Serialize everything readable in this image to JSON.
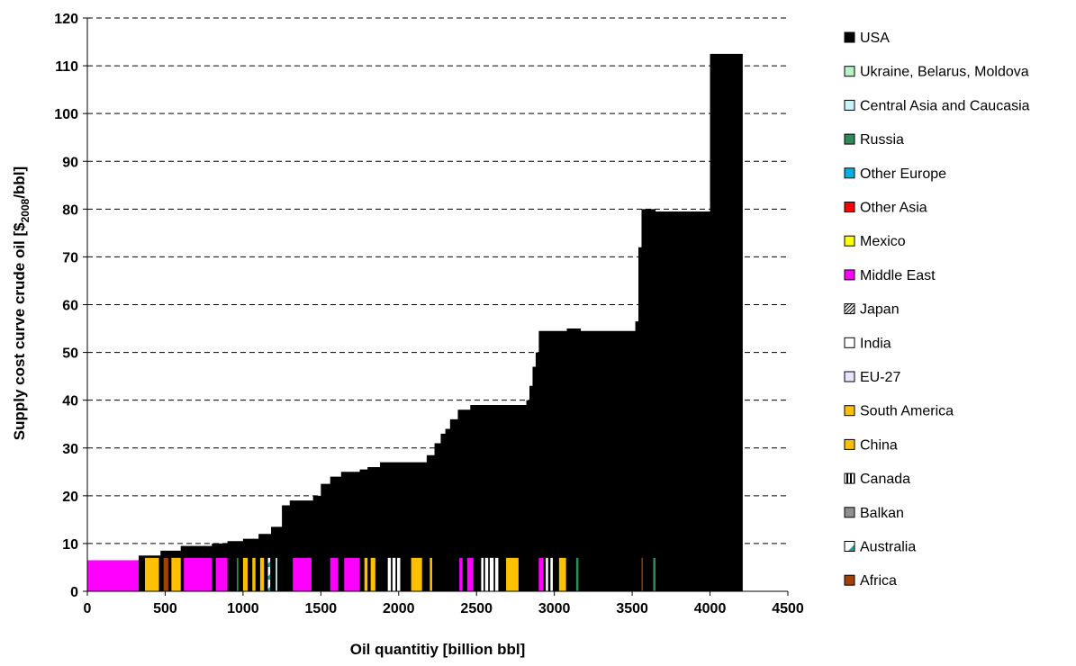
{
  "chart_data": {
    "type": "area",
    "xlabel": "Oil quantitiy [billion bbl]",
    "ylabel_parts": [
      "Supply cost curve crude oil [$",
      "2008",
      "/bbl]"
    ],
    "xlim": [
      0,
      4500
    ],
    "ylim": [
      0,
      120
    ],
    "x_ticks": [
      0,
      500,
      1000,
      1500,
      2000,
      2500,
      3000,
      3500,
      4000,
      4500
    ],
    "y_ticks": [
      0,
      10,
      20,
      30,
      40,
      50,
      60,
      70,
      80,
      90,
      100,
      110,
      120
    ],
    "y_gridlines": true,
    "legend_position": "right",
    "legend": [
      {
        "name": "USA",
        "color": "#000000",
        "pattern": "solid"
      },
      {
        "name": "Ukraine, Belarus, Moldova",
        "color": "#b8f0c8",
        "pattern": "solid"
      },
      {
        "name": "Central Asia and Caucasia",
        "color": "#c8f4f8",
        "pattern": "solid"
      },
      {
        "name": "Russia",
        "color": "#2e8b57",
        "pattern": "solid"
      },
      {
        "name": "Other Europe",
        "color": "#00b0e0",
        "pattern": "solid"
      },
      {
        "name": "Other Asia",
        "color": "#ff0000",
        "pattern": "solid"
      },
      {
        "name": "Mexico",
        "color": "#ffff00",
        "pattern": "solid"
      },
      {
        "name": "Middle East",
        "color": "#ff00ff",
        "pattern": "solid"
      },
      {
        "name": "Japan",
        "color": "#ffffff",
        "pattern": "hatch"
      },
      {
        "name": "India",
        "color": "#ffffff",
        "pattern": "solid"
      },
      {
        "name": "EU-27",
        "color": "#e8e4ff",
        "pattern": "solid"
      },
      {
        "name": "South America",
        "color": "#ffc000",
        "pattern": "solid"
      },
      {
        "name": "China",
        "color": "#ffc000",
        "pattern": "solid"
      },
      {
        "name": "Canada",
        "color": "#ffffff",
        "pattern": "vstripe"
      },
      {
        "name": "Balkan",
        "color": "#909090",
        "pattern": "solid"
      },
      {
        "name": "Australia",
        "color": "#20a0a0",
        "pattern": "diag"
      },
      {
        "name": "Africa",
        "color": "#a0400a",
        "pattern": "solid"
      }
    ],
    "supply_curve": [
      [
        0,
        6.5
      ],
      [
        330,
        7.5
      ],
      [
        470,
        8.5
      ],
      [
        600,
        9.5
      ],
      [
        800,
        10
      ],
      [
        900,
        10.5
      ],
      [
        1000,
        11
      ],
      [
        1100,
        12
      ],
      [
        1180,
        13.5
      ],
      [
        1250,
        18
      ],
      [
        1300,
        19
      ],
      [
        1450,
        20
      ],
      [
        1500,
        22.5
      ],
      [
        1560,
        24
      ],
      [
        1630,
        25
      ],
      [
        1750,
        25.5
      ],
      [
        1800,
        26
      ],
      [
        1880,
        27
      ],
      [
        2180,
        28.5
      ],
      [
        2230,
        31
      ],
      [
        2270,
        33
      ],
      [
        2300,
        34
      ],
      [
        2330,
        36
      ],
      [
        2380,
        38
      ],
      [
        2460,
        39
      ],
      [
        2820,
        40
      ],
      [
        2840,
        43
      ],
      [
        2860,
        47
      ],
      [
        2880,
        50
      ],
      [
        2900,
        54.5
      ],
      [
        3080,
        55
      ],
      [
        3170,
        54.5
      ],
      [
        3520,
        56.5
      ],
      [
        3540,
        72
      ],
      [
        3560,
        80
      ],
      [
        3650,
        79.5
      ],
      [
        4000,
        112.5
      ],
      [
        4060,
        112.5
      ],
      [
        4210,
        0
      ]
    ],
    "region_segments": [
      {
        "region": "Middle East",
        "x0": 0,
        "x1": 330
      },
      {
        "region": "South America",
        "x0": 370,
        "x1": 460
      },
      {
        "region": "Africa",
        "x0": 490,
        "x1": 520
      },
      {
        "region": "China",
        "x0": 540,
        "x1": 600
      },
      {
        "region": "Middle East",
        "x0": 620,
        "x1": 800
      },
      {
        "region": "Middle East",
        "x0": 825,
        "x1": 900
      },
      {
        "region": "Russia",
        "x0": 960,
        "x1": 970
      },
      {
        "region": "China",
        "x0": 1000,
        "x1": 1030
      },
      {
        "region": "South America",
        "x0": 1060,
        "x1": 1080
      },
      {
        "region": "China",
        "x0": 1110,
        "x1": 1135
      },
      {
        "region": "Australia",
        "x0": 1160,
        "x1": 1175
      },
      {
        "region": "Central Asia and Caucasia",
        "x0": 1210,
        "x1": 1220
      },
      {
        "region": "Middle East",
        "x0": 1320,
        "x1": 1440
      },
      {
        "region": "Middle East",
        "x0": 1560,
        "x1": 1610
      },
      {
        "region": "Middle East",
        "x0": 1650,
        "x1": 1750
      },
      {
        "region": "China",
        "x0": 1780,
        "x1": 1800
      },
      {
        "region": "South America",
        "x0": 1820,
        "x1": 1850
      },
      {
        "region": "India",
        "x0": 1930,
        "x1": 1950
      },
      {
        "region": "India",
        "x0": 1960,
        "x1": 1980
      },
      {
        "region": "India",
        "x0": 1990,
        "x1": 2010
      },
      {
        "region": "South America",
        "x0": 2080,
        "x1": 2150
      },
      {
        "region": "China",
        "x0": 2200,
        "x1": 2215
      },
      {
        "region": "Middle East",
        "x0": 2390,
        "x1": 2410
      },
      {
        "region": "Middle East",
        "x0": 2440,
        "x1": 2480
      },
      {
        "region": "India",
        "x0": 2530,
        "x1": 2545
      },
      {
        "region": "India",
        "x0": 2555,
        "x1": 2575
      },
      {
        "region": "India",
        "x0": 2585,
        "x1": 2610
      },
      {
        "region": "India",
        "x0": 2620,
        "x1": 2640
      },
      {
        "region": "South America",
        "x0": 2690,
        "x1": 2770
      },
      {
        "region": "Middle East",
        "x0": 2900,
        "x1": 2930
      },
      {
        "region": "India",
        "x0": 2945,
        "x1": 2960
      },
      {
        "region": "India",
        "x0": 2975,
        "x1": 2990
      },
      {
        "region": "China",
        "x0": 3030,
        "x1": 3075
      },
      {
        "region": "Russia",
        "x0": 3140,
        "x1": 3155
      },
      {
        "region": "Russia",
        "x0": 3635,
        "x1": 3650
      },
      {
        "region": "Africa",
        "x0": 3560,
        "x1": 3568
      }
    ]
  }
}
